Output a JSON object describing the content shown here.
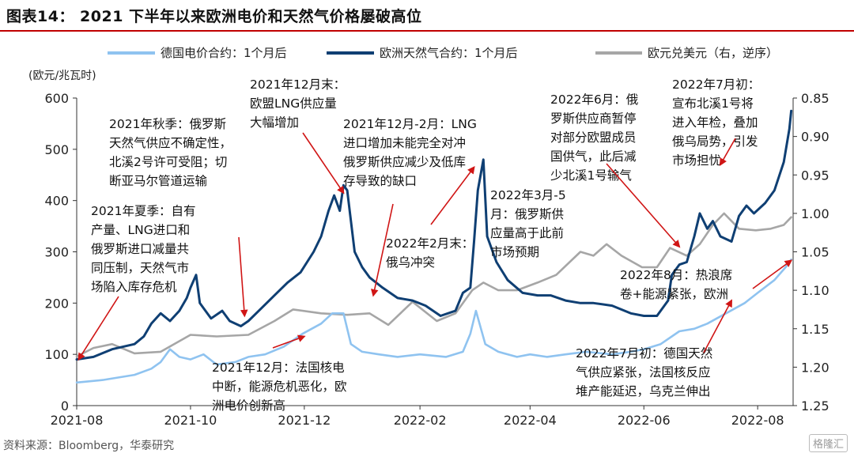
{
  "figure": {
    "title": "图表14： 2021 下半年以来欧洲电价和天然气价格屡破高位",
    "source": "资料来源：Bloomberg，华泰研究",
    "watermark": "格隆汇"
  },
  "colors": {
    "german_power": "#8fc3f0",
    "eu_gas": "#0f3f73",
    "eurusd": "#a6a6a6",
    "arrow": "#d01515",
    "axis": "#333333",
    "title_rule": "#c00000"
  },
  "chart_data": {
    "type": "line",
    "x_axis": {
      "range": [
        "2021-08-01",
        "2022-08-20"
      ],
      "ticks": [
        "2021-08",
        "2021-10",
        "2021-12",
        "2022-02",
        "2022-04",
        "2022-06",
        "2022-08"
      ]
    },
    "y_left": {
      "label": "(欧元/兆瓦时)",
      "range": [
        0,
        600
      ],
      "ticks": [
        "0",
        "100",
        "200",
        "300",
        "400",
        "500",
        "600"
      ]
    },
    "y_right": {
      "range": [
        0.85,
        1.25
      ],
      "inverted": true,
      "ticks": [
        "0.85",
        "0.90",
        "0.95",
        "1.00",
        "1.05",
        "1.10",
        "1.15",
        "1.20",
        "1.25"
      ]
    },
    "legend": {
      "position": "top",
      "entries": [
        "德国电价合约：1个月后",
        "欧洲天然气合约：1个月后",
        "欧元兑美元（右，逆序）"
      ]
    },
    "series": [
      {
        "name": "德国电价合约：1个月后",
        "axis": "left",
        "points": [
          [
            "2021-08-01",
            45
          ],
          [
            "2021-08-15",
            50
          ],
          [
            "2021-09-01",
            60
          ],
          [
            "2021-09-10",
            72
          ],
          [
            "2021-09-15",
            85
          ],
          [
            "2021-09-20",
            110
          ],
          [
            "2021-09-25",
            95
          ],
          [
            "2021-10-01",
            90
          ],
          [
            "2021-10-08",
            100
          ],
          [
            "2021-10-15",
            80
          ],
          [
            "2021-10-25",
            85
          ],
          [
            "2021-11-01",
            95
          ],
          [
            "2021-11-10",
            100
          ],
          [
            "2021-11-20",
            115
          ],
          [
            "2021-11-30",
            140
          ],
          [
            "2021-12-10",
            160
          ],
          [
            "2021-12-16",
            180
          ],
          [
            "2021-12-22",
            180
          ],
          [
            "2021-12-26",
            120
          ],
          [
            "2022-01-01",
            105
          ],
          [
            "2022-01-10",
            100
          ],
          [
            "2022-01-20",
            95
          ],
          [
            "2022-02-01",
            100
          ],
          [
            "2022-02-15",
            95
          ],
          [
            "2022-02-24",
            105
          ],
          [
            "2022-02-28",
            140
          ],
          [
            "2022-03-03",
            185
          ],
          [
            "2022-03-08",
            120
          ],
          [
            "2022-03-15",
            105
          ],
          [
            "2022-03-25",
            95
          ],
          [
            "2022-04-01",
            100
          ],
          [
            "2022-04-10",
            95
          ],
          [
            "2022-04-20",
            100
          ],
          [
            "2022-05-01",
            105
          ],
          [
            "2022-05-15",
            100
          ],
          [
            "2022-05-25",
            105
          ],
          [
            "2022-06-01",
            110
          ],
          [
            "2022-06-10",
            120
          ],
          [
            "2022-06-20",
            145
          ],
          [
            "2022-06-28",
            150
          ],
          [
            "2022-07-05",
            160
          ],
          [
            "2022-07-15",
            180
          ],
          [
            "2022-07-25",
            200
          ],
          [
            "2022-08-01",
            220
          ],
          [
            "2022-08-10",
            245
          ],
          [
            "2022-08-16",
            270
          ],
          [
            "2022-08-19",
            285
          ]
        ]
      },
      {
        "name": "欧洲天然气合约：1个月后",
        "axis": "left",
        "points": [
          [
            "2021-08-01",
            90
          ],
          [
            "2021-08-10",
            95
          ],
          [
            "2021-08-20",
            110
          ],
          [
            "2021-09-01",
            120
          ],
          [
            "2021-09-06",
            135
          ],
          [
            "2021-09-10",
            160
          ],
          [
            "2021-09-15",
            180
          ],
          [
            "2021-09-20",
            165
          ],
          [
            "2021-09-25",
            185
          ],
          [
            "2021-09-29",
            210
          ],
          [
            "2021-10-01",
            230
          ],
          [
            "2021-10-04",
            255
          ],
          [
            "2021-10-06",
            200
          ],
          [
            "2021-10-08",
            190
          ],
          [
            "2021-10-12",
            170
          ],
          [
            "2021-10-18",
            185
          ],
          [
            "2021-10-22",
            165
          ],
          [
            "2021-10-28",
            155
          ],
          [
            "2021-11-01",
            165
          ],
          [
            "2021-11-08",
            190
          ],
          [
            "2021-11-15",
            215
          ],
          [
            "2021-11-22",
            240
          ],
          [
            "2021-11-29",
            260
          ],
          [
            "2021-12-06",
            300
          ],
          [
            "2021-12-10",
            330
          ],
          [
            "2021-12-14",
            380
          ],
          [
            "2021-12-17",
            410
          ],
          [
            "2021-12-20",
            380
          ],
          [
            "2021-12-22",
            430
          ],
          [
            "2021-12-24",
            420
          ],
          [
            "2021-12-28",
            300
          ],
          [
            "2022-01-01",
            270
          ],
          [
            "2022-01-05",
            250
          ],
          [
            "2022-01-12",
            230
          ],
          [
            "2022-01-20",
            210
          ],
          [
            "2022-01-28",
            205
          ],
          [
            "2022-02-04",
            195
          ],
          [
            "2022-02-12",
            175
          ],
          [
            "2022-02-20",
            185
          ],
          [
            "2022-02-24",
            220
          ],
          [
            "2022-02-28",
            230
          ],
          [
            "2022-03-02",
            320
          ],
          [
            "2022-03-04",
            420
          ],
          [
            "2022-03-07",
            480
          ],
          [
            "2022-03-09",
            330
          ],
          [
            "2022-03-14",
            280
          ],
          [
            "2022-03-20",
            245
          ],
          [
            "2022-03-28",
            220
          ],
          [
            "2022-04-05",
            215
          ],
          [
            "2022-04-12",
            215
          ],
          [
            "2022-04-20",
            205
          ],
          [
            "2022-04-28",
            200
          ],
          [
            "2022-05-05",
            200
          ],
          [
            "2022-05-15",
            195
          ],
          [
            "2022-05-25",
            180
          ],
          [
            "2022-06-01",
            175
          ],
          [
            "2022-06-08",
            175
          ],
          [
            "2022-06-14",
            205
          ],
          [
            "2022-06-16",
            255
          ],
          [
            "2022-06-20",
            275
          ],
          [
            "2022-06-24",
            280
          ],
          [
            "2022-06-28",
            330
          ],
          [
            "2022-07-01",
            375
          ],
          [
            "2022-07-05",
            345
          ],
          [
            "2022-07-08",
            360
          ],
          [
            "2022-07-12",
            330
          ],
          [
            "2022-07-18",
            320
          ],
          [
            "2022-07-22",
            370
          ],
          [
            "2022-07-26",
            390
          ],
          [
            "2022-07-30",
            375
          ],
          [
            "2022-08-05",
            395
          ],
          [
            "2022-08-10",
            420
          ],
          [
            "2022-08-15",
            475
          ],
          [
            "2022-08-18",
            540
          ],
          [
            "2022-08-19",
            575
          ]
        ]
      },
      {
        "name": "欧元兑美元（右，逆序）",
        "axis": "right",
        "points": [
          [
            "2021-08-01",
            1.186
          ],
          [
            "2021-08-10",
            1.175
          ],
          [
            "2021-08-20",
            1.17
          ],
          [
            "2021-09-01",
            1.182
          ],
          [
            "2021-09-15",
            1.18
          ],
          [
            "2021-10-01",
            1.158
          ],
          [
            "2021-10-15",
            1.16
          ],
          [
            "2021-11-01",
            1.158
          ],
          [
            "2021-11-15",
            1.14
          ],
          [
            "2021-11-25",
            1.125
          ],
          [
            "2021-12-10",
            1.13
          ],
          [
            "2021-12-24",
            1.132
          ],
          [
            "2022-01-05",
            1.13
          ],
          [
            "2022-01-15",
            1.145
          ],
          [
            "2022-01-28",
            1.115
          ],
          [
            "2022-02-10",
            1.14
          ],
          [
            "2022-02-20",
            1.13
          ],
          [
            "2022-03-01",
            1.1
          ],
          [
            "2022-03-07",
            1.09
          ],
          [
            "2022-03-15",
            1.1
          ],
          [
            "2022-03-25",
            1.1
          ],
          [
            "2022-04-05",
            1.09
          ],
          [
            "2022-04-15",
            1.08
          ],
          [
            "2022-04-28",
            1.05
          ],
          [
            "2022-05-05",
            1.055
          ],
          [
            "2022-05-12",
            1.04
          ],
          [
            "2022-05-20",
            1.055
          ],
          [
            "2022-05-31",
            1.07
          ],
          [
            "2022-06-08",
            1.07
          ],
          [
            "2022-06-15",
            1.045
          ],
          [
            "2022-06-24",
            1.055
          ],
          [
            "2022-07-01",
            1.04
          ],
          [
            "2022-07-08",
            1.015
          ],
          [
            "2022-07-14",
            1.0
          ],
          [
            "2022-07-22",
            1.02
          ],
          [
            "2022-07-31",
            1.022
          ],
          [
            "2022-08-08",
            1.02
          ],
          [
            "2022-08-15",
            1.015
          ],
          [
            "2022-08-19",
            1.005
          ]
        ]
      }
    ],
    "annotations": [
      {
        "text": "2021年夏季：自有\n产量、LNG进口和\n俄罗斯进口减量共\n同压制，天然气市\n场陷入库存危机",
        "target": [
          "2021-08-02",
          90
        ]
      },
      {
        "text": "2021年秋季：俄罗斯\n天然气供应不确定性，\n北溪2号许可受阻；切\n断亚马尔管道运输",
        "target": [
          "2021-10-30",
          175
        ]
      },
      {
        "text": "2021年12月末：\n欧盟LNG供应量\n大幅增加",
        "target": [
          "2021-12-22",
          415
        ]
      },
      {
        "text": "2021年12月：法国核电\n中断，能源危机恶化，欧\n洲电价创新高",
        "target": [
          "2021-12-01",
          135
        ]
      },
      {
        "text": "2021年12月-2月：LNG\n进口增加未能完全对冲\n俄罗斯供应减少及低库\n存导致的缺口",
        "target": [
          "2022-01-07",
          215
        ]
      },
      {
        "text": "2022年2月末：\n俄乌冲突",
        "target": [
          "2022-03-02",
          465
        ]
      },
      {
        "text": "2022年3月-5\n月：俄罗斯供\n应量高于此前\n市场预期",
        "target": [],
        "arrow": false
      },
      {
        "text": "2022年6月：俄\n罗斯供应商暂停\n对部分欧盟成员\n国供气，此后减\n少北溪1号输气",
        "target": [
          "2022-06-20",
          310
        ]
      },
      {
        "text": "2022年7月初：\n宣布北溪1号将\n进入年检，叠加\n俄乌局势，引发\n市场担忧",
        "target": [
          "2022-07-12",
          470
        ]
      },
      {
        "text": "2022年8月：热浪席\n卷+能源紧张，欧洲",
        "target": [
          "2022-08-19",
          283
        ]
      },
      {
        "text": "2022年7月初：德国天然\n气供应紧张，法国核反应\n堆产能延迟，乌克兰伸出",
        "target": [
          "2022-07-18",
          205
        ]
      }
    ]
  }
}
